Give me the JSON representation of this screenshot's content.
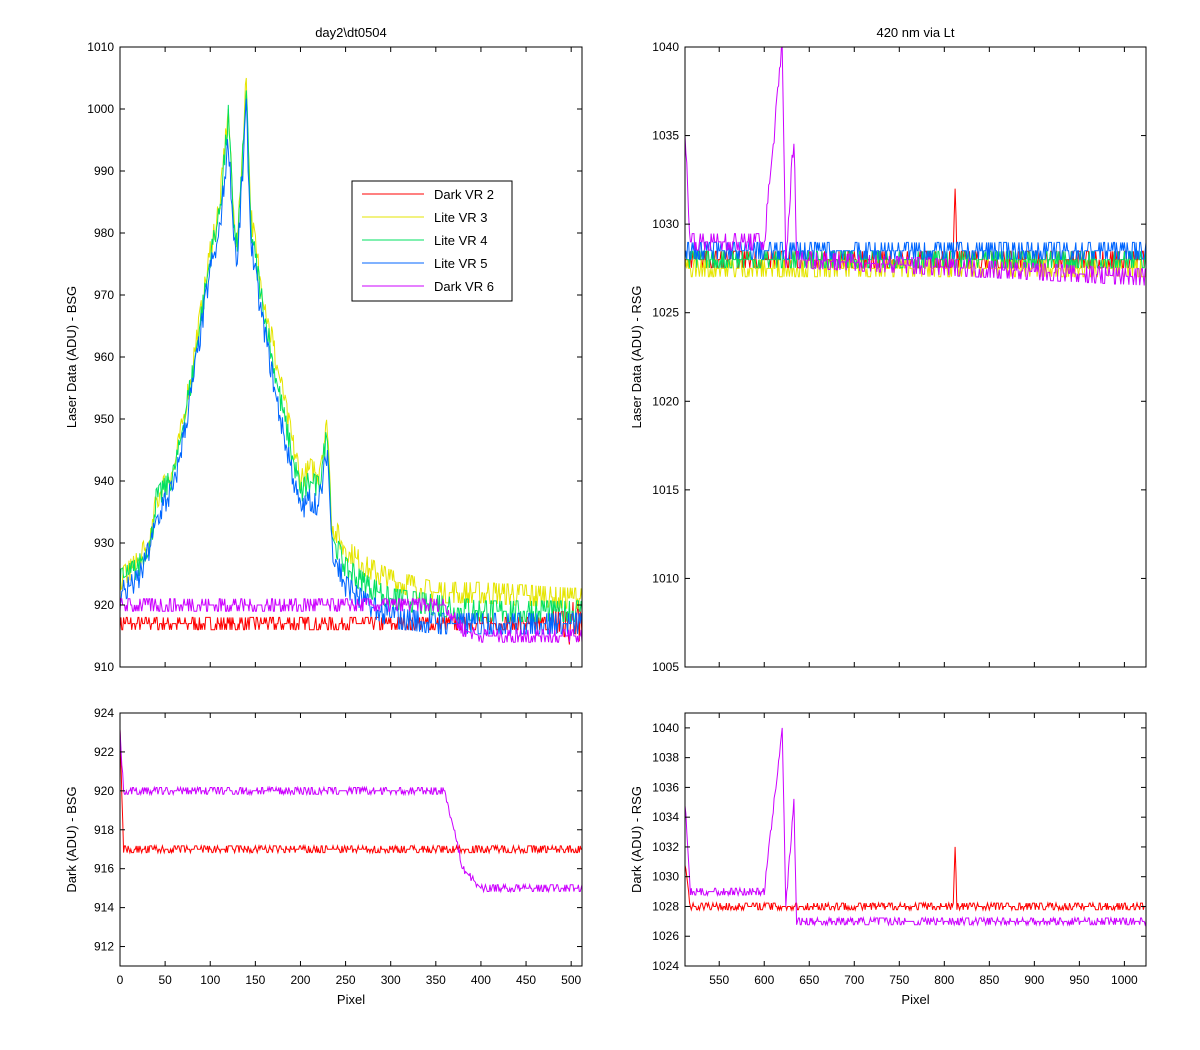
{
  "chart_data": [
    {
      "panel": "top-left",
      "type": "line",
      "title": "day2\\dt0504",
      "xlabel": "",
      "ylabel": "Laser Data (ADU) - BSG",
      "xlim": [
        0,
        512
      ],
      "ylim": [
        910,
        1010
      ],
      "yticks": [
        910,
        920,
        930,
        940,
        950,
        960,
        970,
        980,
        990,
        1000,
        1010
      ],
      "xticks": [],
      "legend": {
        "position": "upper-center",
        "entries": [
          "Dark VR 2",
          "Lite VR 3",
          "Lite VR 4",
          "Lite VR 5",
          "Dark VR 6"
        ]
      },
      "series": [
        {
          "name": "Dark VR 2",
          "color": "#ff0000",
          "base": 917,
          "noise": 0.6,
          "points": [
            [
              0,
              917
            ],
            [
              360,
              917
            ],
            [
              450,
              917
            ],
            [
              480,
              917
            ],
            [
              490,
              918
            ],
            [
              512,
              917
            ]
          ],
          "tail_noise": [
            480,
            512,
            4
          ]
        },
        {
          "name": "Lite VR 3",
          "color": "#e5e500",
          "base": 0,
          "noise": 1.0,
          "points": [
            [
              0,
              924
            ],
            [
              20,
              927
            ],
            [
              35,
              931
            ],
            [
              40,
              937
            ],
            [
              60,
              942
            ],
            [
              80,
              958
            ],
            [
              100,
              977
            ],
            [
              110,
              984
            ],
            [
              120,
              1000
            ],
            [
              125,
              985
            ],
            [
              130,
              978
            ],
            [
              140,
              1005
            ],
            [
              145,
              983
            ],
            [
              155,
              973
            ],
            [
              175,
              958
            ],
            [
              200,
              940
            ],
            [
              210,
              942
            ],
            [
              220,
              941
            ],
            [
              230,
              949
            ],
            [
              235,
              933
            ],
            [
              250,
              929
            ],
            [
              275,
              926
            ],
            [
              300,
              924
            ],
            [
              350,
              922
            ],
            [
              400,
              922
            ],
            [
              512,
              921
            ]
          ]
        },
        {
          "name": "Lite VR 4",
          "color": "#00e060",
          "base": 0,
          "noise": 1.0,
          "points": [
            [
              0,
              924
            ],
            [
              20,
              926
            ],
            [
              35,
              931
            ],
            [
              40,
              937
            ],
            [
              60,
              941
            ],
            [
              80,
              957
            ],
            [
              100,
              976
            ],
            [
              110,
              983
            ],
            [
              120,
              999
            ],
            [
              125,
              984
            ],
            [
              130,
              977
            ],
            [
              140,
              1003
            ],
            [
              145,
              981
            ],
            [
              155,
              971
            ],
            [
              175,
              955
            ],
            [
              200,
              938
            ],
            [
              210,
              940
            ],
            [
              220,
              939
            ],
            [
              230,
              948
            ],
            [
              235,
              931
            ],
            [
              250,
              926
            ],
            [
              275,
              923
            ],
            [
              300,
              921
            ],
            [
              350,
              920
            ],
            [
              400,
              919
            ],
            [
              512,
              919
            ]
          ]
        },
        {
          "name": "Lite VR 5",
          "color": "#0066ff",
          "base": 0,
          "noise": 1.0,
          "points": [
            [
              0,
              922
            ],
            [
              20,
              924
            ],
            [
              35,
              930
            ],
            [
              40,
              934
            ],
            [
              60,
              939
            ],
            [
              80,
              955
            ],
            [
              100,
              974
            ],
            [
              110,
              980
            ],
            [
              120,
              995
            ],
            [
              125,
              982
            ],
            [
              130,
              975
            ],
            [
              140,
              1000
            ],
            [
              145,
              979
            ],
            [
              155,
              968
            ],
            [
              175,
              952
            ],
            [
              200,
              935
            ],
            [
              210,
              937
            ],
            [
              220,
              936
            ],
            [
              230,
              945
            ],
            [
              235,
              929
            ],
            [
              250,
              923
            ],
            [
              275,
              920
            ],
            [
              300,
              918
            ],
            [
              350,
              917
            ],
            [
              400,
              917
            ],
            [
              512,
              917
            ]
          ]
        },
        {
          "name": "Dark VR 6",
          "color": "#cc00ff",
          "base": 0,
          "noise": 0.6,
          "points": [
            [
              0,
              920
            ],
            [
              360,
              920
            ],
            [
              370,
              918
            ],
            [
              380,
              916
            ],
            [
              400,
              915
            ],
            [
              480,
              915
            ],
            [
              512,
              915
            ]
          ]
        }
      ]
    },
    {
      "panel": "top-right",
      "type": "line",
      "title": "420 nm via Lt",
      "xlabel": "",
      "ylabel": "Laser Data (ADU) - RSG",
      "xlim": [
        512,
        1024
      ],
      "ylim": [
        1005,
        1040
      ],
      "yticks": [
        1005,
        1010,
        1015,
        1020,
        1025,
        1030,
        1035,
        1040
      ],
      "xticks": [],
      "series": [
        {
          "name": "Dark VR 2",
          "color": "#ff0000",
          "points": [
            [
              512,
              1028
            ],
            [
              810,
              1028
            ],
            [
              812,
              1032
            ],
            [
              814,
              1028
            ],
            [
              1024,
              1028
            ]
          ]
        },
        {
          "name": "Lite VR 3",
          "color": "#e5e500",
          "points": [
            [
              512,
              1027.5
            ],
            [
              1024,
              1027.5
            ]
          ]
        },
        {
          "name": "Lite VR 4",
          "color": "#00e060",
          "points": [
            [
              512,
              1028
            ],
            [
              1024,
              1028
            ]
          ]
        },
        {
          "name": "Lite VR 5",
          "color": "#0066ff",
          "points": [
            [
              512,
              1028.5
            ],
            [
              1024,
              1028.5
            ]
          ]
        },
        {
          "name": "Dark VR 6",
          "color": "#cc00ff",
          "points": [
            [
              512,
              1035
            ],
            [
              518,
              1029
            ],
            [
              600,
              1029
            ],
            [
              620,
              1040
            ],
            [
              624,
              1028
            ],
            [
              633,
              1035
            ],
            [
              636,
              1028
            ],
            [
              1024,
              1027
            ]
          ]
        }
      ]
    },
    {
      "panel": "bottom-left",
      "type": "line",
      "title": "",
      "xlabel": "Pixel",
      "ylabel": "Dark (ADU) - BSG",
      "xlim": [
        0,
        512
      ],
      "ylim": [
        911,
        924
      ],
      "yticks": [
        912,
        914,
        916,
        918,
        920,
        922,
        924
      ],
      "xticks": [
        0,
        50,
        100,
        150,
        200,
        250,
        300,
        350,
        400,
        450,
        500
      ],
      "series": [
        {
          "name": "Dark VR 2",
          "color": "#ff0000",
          "points": [
            [
              0,
              923
            ],
            [
              4,
              917
            ],
            [
              360,
              917
            ],
            [
              480,
              917
            ],
            [
              512,
              917
            ]
          ]
        },
        {
          "name": "Dark VR 6",
          "color": "#cc00ff",
          "points": [
            [
              0,
              923
            ],
            [
              4,
              920
            ],
            [
              360,
              920
            ],
            [
              370,
              918
            ],
            [
              380,
              916
            ],
            [
              400,
              915
            ],
            [
              480,
              915
            ],
            [
              512,
              915
            ]
          ]
        }
      ]
    },
    {
      "panel": "bottom-right",
      "type": "line",
      "title": "",
      "xlabel": "Pixel",
      "ylabel": "Dark (ADU) - RSG",
      "xlim": [
        512,
        1024
      ],
      "ylim": [
        1024,
        1041
      ],
      "yticks": [
        1024,
        1026,
        1028,
        1030,
        1032,
        1034,
        1036,
        1038,
        1040
      ],
      "xticks": [
        550,
        600,
        650,
        700,
        750,
        800,
        850,
        900,
        950,
        1000
      ],
      "series": [
        {
          "name": "Dark VR 2",
          "color": "#ff0000",
          "points": [
            [
              512,
              1031
            ],
            [
              518,
              1028
            ],
            [
              810,
              1028
            ],
            [
              812,
              1032
            ],
            [
              814,
              1028
            ],
            [
              1024,
              1028
            ]
          ]
        },
        {
          "name": "Dark VR 6",
          "color": "#cc00ff",
          "points": [
            [
              512,
              1035
            ],
            [
              518,
              1029
            ],
            [
              600,
              1029
            ],
            [
              620,
              1040
            ],
            [
              624,
              1028
            ],
            [
              633,
              1035
            ],
            [
              636,
              1027
            ],
            [
              1024,
              1027
            ]
          ]
        }
      ]
    }
  ]
}
